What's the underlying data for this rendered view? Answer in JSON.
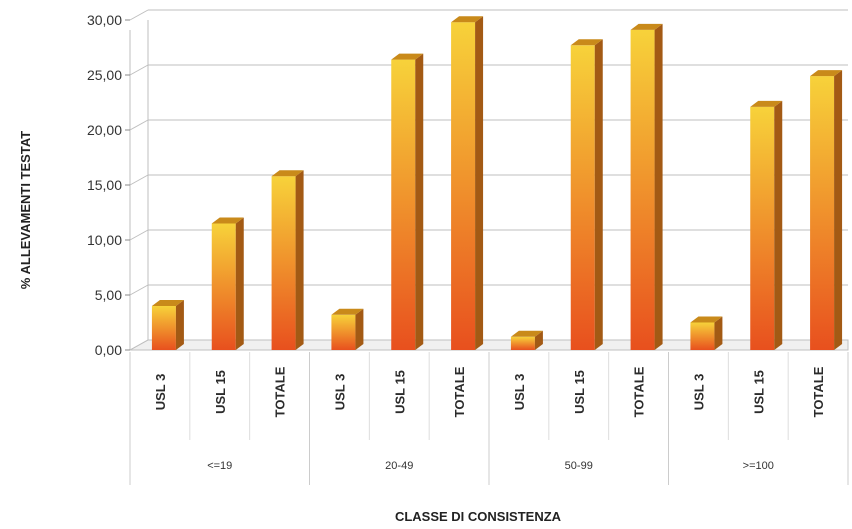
{
  "chart_data": {
    "type": "bar",
    "title": "",
    "xlabel": "CLASSE DI CONSISTENZA",
    "ylabel": "% ALLEVAMENTI TESTAT",
    "ylim": [
      0,
      30
    ],
    "y_ticks": [
      "0,00",
      "5,00",
      "10,00",
      "15,00",
      "20,00",
      "25,00",
      "30,00"
    ],
    "grid": true,
    "groups": [
      {
        "label": "<=19",
        "categories": [
          "USL 3",
          "USL 15",
          "TOTALE"
        ],
        "values": [
          4.0,
          11.5,
          15.8
        ]
      },
      {
        "label": "20-49",
        "categories": [
          "USL 3",
          "USL 15",
          "TOTALE"
        ],
        "values": [
          3.2,
          26.4,
          29.8
        ]
      },
      {
        "label": "50-99",
        "categories": [
          "USL 3",
          "USL 15",
          "TOTALE"
        ],
        "values": [
          1.2,
          27.7,
          29.1
        ]
      },
      {
        "label": ">=100",
        "categories": [
          "USL 3",
          "USL 15",
          "TOTALE"
        ],
        "values": [
          2.5,
          22.1,
          24.9
        ]
      }
    ]
  },
  "colors": {
    "bar_top": "#f7d23a",
    "bar_bottom": "#e8501e",
    "bar_side": "#a35a14",
    "bar_cap": "#c98a1a",
    "grid": "#bfbfbf"
  }
}
